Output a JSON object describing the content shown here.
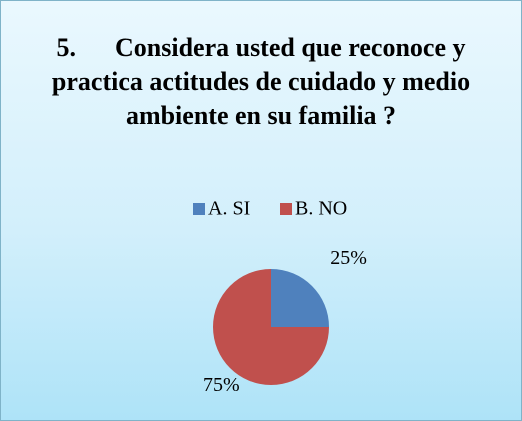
{
  "chart_data": {
    "type": "pie",
    "title": "5.      Considera usted que reconoce y practica actitudes de cuidado y medio ambiente en su familia ?",
    "categories": [
      "A. SI",
      "B. NO"
    ],
    "values": [
      25,
      75
    ],
    "value_labels": [
      "25%",
      "75%"
    ],
    "colors": [
      "#4f81bd",
      "#c0504d"
    ],
    "legend": "top"
  }
}
